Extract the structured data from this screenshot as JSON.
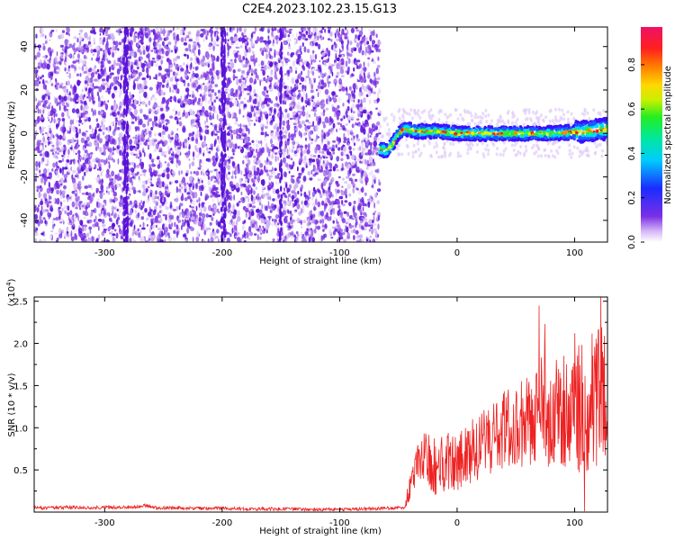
{
  "title": "C2E4.2023.102.23.15.G13",
  "colors": {
    "line": "#ee2222",
    "scatter_palette": [
      "#e8d9f8",
      "#d0b4f4",
      "#a97ae8",
      "#8a3ee6",
      "#6a1fe0",
      "#5b14d9"
    ],
    "core_palette": [
      "#1a5cff",
      "#00d9ff",
      "#22ee44",
      "#e8f000",
      "#ff8800",
      "#ee2222"
    ]
  },
  "chart_data": [
    {
      "type": "heatmap",
      "xlabel": "Height of straight line (km)",
      "ylabel": "Frequency (Hz)",
      "xlim": [
        -360,
        128
      ],
      "ylim": [
        -50,
        49
      ],
      "x_ticks": [
        -300,
        -200,
        -100,
        0,
        100
      ],
      "y_ticks": [
        -40,
        -20,
        0,
        20,
        40
      ],
      "noise_region": [
        -360,
        -66
      ],
      "signal_track": [
        {
          "x": -66,
          "y": -7
        },
        {
          "x": -60,
          "y": -8
        },
        {
          "x": -55,
          "y": -5
        },
        {
          "x": -50,
          "y": 0
        },
        {
          "x": -45,
          "y": 2
        },
        {
          "x": -35,
          "y": 1
        },
        {
          "x": -20,
          "y": 1
        },
        {
          "x": 0,
          "y": 0
        },
        {
          "x": 40,
          "y": 0
        },
        {
          "x": 80,
          "y": 0
        },
        {
          "x": 110,
          "y": 1
        },
        {
          "x": 128,
          "y": 2
        }
      ],
      "colorbar": {
        "label": "Normalized spectral amplitude",
        "range": [
          0,
          0.97
        ],
        "ticks": [
          "0.0",
          "0.2",
          "0.4",
          "0.6",
          "0.8"
        ],
        "tick_values": [
          0.0,
          0.2,
          0.4,
          0.6,
          0.8
        ]
      }
    },
    {
      "type": "line",
      "xlabel": "Height of straight line (km)",
      "ylabel": "SNR (10 * v/v)",
      "multiplier_label": "(x10",
      "multiplier_exp": "4",
      "multiplier_close": ")",
      "xlim": [
        -360,
        128
      ],
      "ylim": [
        0,
        2.55
      ],
      "x_ticks": [
        -300,
        -200,
        -100,
        0,
        100
      ],
      "y_ticks": [
        0.5,
        1.0,
        1.5,
        2.0,
        2.5
      ],
      "y_tick_labels": [
        "0.5",
        "1.0",
        "1.5",
        "2.0",
        "2.5"
      ],
      "envelope": [
        {
          "x": -360,
          "y": 0.05
        },
        {
          "x": -270,
          "y": 0.06
        },
        {
          "x": -265,
          "y": 0.08
        },
        {
          "x": -255,
          "y": 0.05
        },
        {
          "x": -100,
          "y": 0.03
        },
        {
          "x": -45,
          "y": 0.05
        },
        {
          "x": -40,
          "y": 0.3
        },
        {
          "x": -30,
          "y": 0.7
        },
        {
          "x": -20,
          "y": 0.55
        },
        {
          "x": 0,
          "y": 0.6
        },
        {
          "x": 20,
          "y": 0.8
        },
        {
          "x": 40,
          "y": 1.0
        },
        {
          "x": 60,
          "y": 1.05
        },
        {
          "x": 80,
          "y": 1.15
        },
        {
          "x": 100,
          "y": 1.2
        },
        {
          "x": 115,
          "y": 1.3
        },
        {
          "x": 128,
          "y": 1.35
        }
      ],
      "spread": [
        {
          "x": -360,
          "y": 0.02
        },
        {
          "x": -45,
          "y": 0.02
        },
        {
          "x": -40,
          "y": 0.2
        },
        {
          "x": -20,
          "y": 0.35
        },
        {
          "x": 20,
          "y": 0.4
        },
        {
          "x": 60,
          "y": 0.55
        },
        {
          "x": 100,
          "y": 0.75
        },
        {
          "x": 128,
          "y": 0.9
        }
      ]
    }
  ]
}
